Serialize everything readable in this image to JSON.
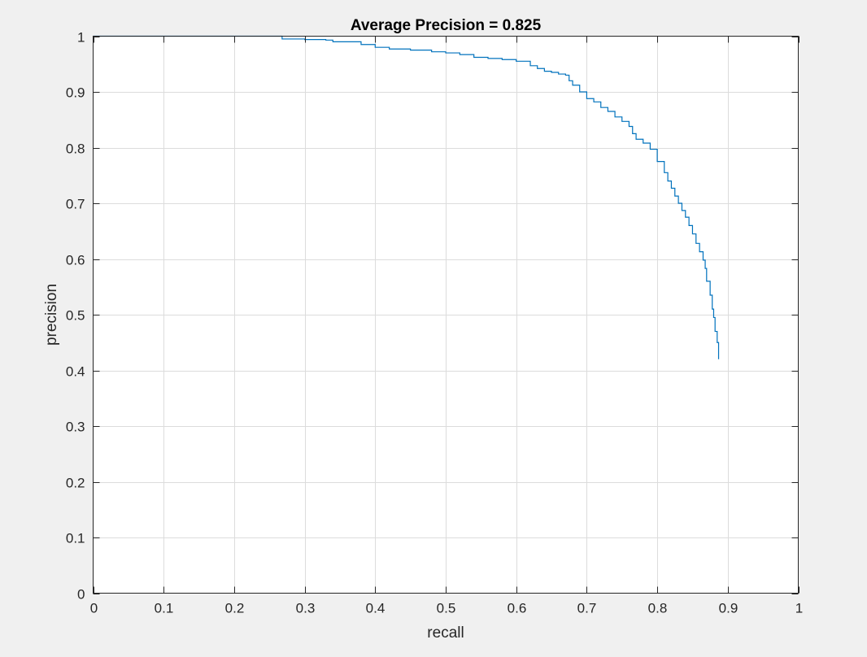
{
  "chart_data": {
    "type": "line",
    "title": "Average Precision = 0.825",
    "xlabel": "recall",
    "ylabel": "precision",
    "xlim": [
      0,
      1
    ],
    "ylim": [
      0,
      1
    ],
    "xticks": [
      0,
      0.1,
      0.2,
      0.3,
      0.4,
      0.5,
      0.6,
      0.7,
      0.8,
      0.9,
      1
    ],
    "yticks": [
      0,
      0.1,
      0.2,
      0.3,
      0.4,
      0.5,
      0.6,
      0.7,
      0.8,
      0.9,
      1
    ],
    "xtick_labels": [
      "0",
      "0.1",
      "0.2",
      "0.3",
      "0.4",
      "0.5",
      "0.6",
      "0.7",
      "0.8",
      "0.9",
      "1"
    ],
    "ytick_labels": [
      "0",
      "0.1",
      "0.2",
      "0.3",
      "0.4",
      "0.5",
      "0.6",
      "0.7",
      "0.8",
      "0.9",
      "1"
    ],
    "grid": true,
    "series": [
      {
        "color": "#0072bd",
        "x": [
          0,
          0.05,
          0.1,
          0.15,
          0.2,
          0.25,
          0.265,
          0.268,
          0.3,
          0.33,
          0.34,
          0.37,
          0.38,
          0.4,
          0.42,
          0.45,
          0.48,
          0.5,
          0.52,
          0.54,
          0.56,
          0.58,
          0.6,
          0.62,
          0.63,
          0.64,
          0.65,
          0.66,
          0.67,
          0.675,
          0.68,
          0.69,
          0.7,
          0.71,
          0.72,
          0.73,
          0.74,
          0.75,
          0.76,
          0.765,
          0.77,
          0.78,
          0.79,
          0.8,
          0.81,
          0.815,
          0.82,
          0.825,
          0.83,
          0.835,
          0.84,
          0.845,
          0.85,
          0.855,
          0.86,
          0.865,
          0.868,
          0.87,
          0.875,
          0.878,
          0.88,
          0.882,
          0.885,
          0.887
        ],
        "y": [
          1.0,
          1.0,
          1.0,
          1.0,
          1.0,
          1.0,
          1.0,
          0.995,
          0.994,
          0.993,
          0.99,
          0.99,
          0.985,
          0.98,
          0.977,
          0.975,
          0.972,
          0.97,
          0.967,
          0.962,
          0.96,
          0.958,
          0.955,
          0.947,
          0.942,
          0.937,
          0.935,
          0.932,
          0.93,
          0.92,
          0.912,
          0.9,
          0.888,
          0.882,
          0.872,
          0.865,
          0.855,
          0.847,
          0.838,
          0.825,
          0.815,
          0.808,
          0.797,
          0.775,
          0.755,
          0.74,
          0.727,
          0.713,
          0.7,
          0.687,
          0.675,
          0.66,
          0.645,
          0.628,
          0.613,
          0.598,
          0.583,
          0.56,
          0.535,
          0.51,
          0.495,
          0.47,
          0.45,
          0.42
        ]
      }
    ]
  }
}
